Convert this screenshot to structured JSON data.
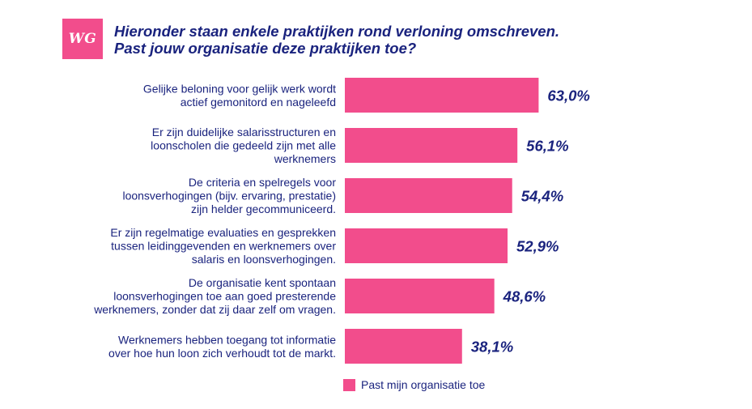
{
  "logo": {
    "text": "WG"
  },
  "title": {
    "line1": "Hieronder staan enkele praktijken rond verloning omschreven.",
    "line2": "Past jouw organisatie deze praktijken toe?"
  },
  "colors": {
    "bar": "#f24d8c",
    "text": "#1a237e",
    "logo_bg": "#f24d8c"
  },
  "chart_data": {
    "type": "bar",
    "orientation": "horizontal",
    "title": "Hieronder staan enkele praktijken rond verloning omschreven. Past jouw organisatie deze praktijken toe?",
    "categories": [
      [
        "Gelijke beloning voor gelijk werk wordt",
        "actief gemonitord en nageleefd"
      ],
      [
        "Er zijn duidelijke salarisstructuren en",
        "loonscholen die gedeeld zijn met alle",
        "werknemers"
      ],
      [
        "De criteria en spelregels voor",
        "loonsverhogingen (bijv. ervaring, prestatie)",
        "zijn helder gecommuniceerd."
      ],
      [
        "Er zijn regelmatige evaluaties en gesprekken",
        "tussen leidinggevenden en werknemers over",
        "salaris en loonsverhogingen."
      ],
      [
        "De organisatie kent spontaan",
        "loonsverhogingen toe aan goed presterende",
        "werknemers, zonder dat zij daar zelf om vragen."
      ],
      [
        "Werknemers hebben toegang tot informatie",
        "over hoe hun loon zich verhoudt tot de markt."
      ]
    ],
    "series": [
      {
        "name": "Past mijn organisatie toe",
        "values": [
          63.0,
          56.1,
          54.4,
          52.9,
          48.6,
          38.1
        ]
      }
    ],
    "value_labels": [
      "63,0%",
      "56,1%",
      "54,4%",
      "52,9%",
      "48,6%",
      "38,1%"
    ],
    "xlim": [
      0,
      100
    ],
    "grid": false,
    "legend_position": "bottom"
  }
}
